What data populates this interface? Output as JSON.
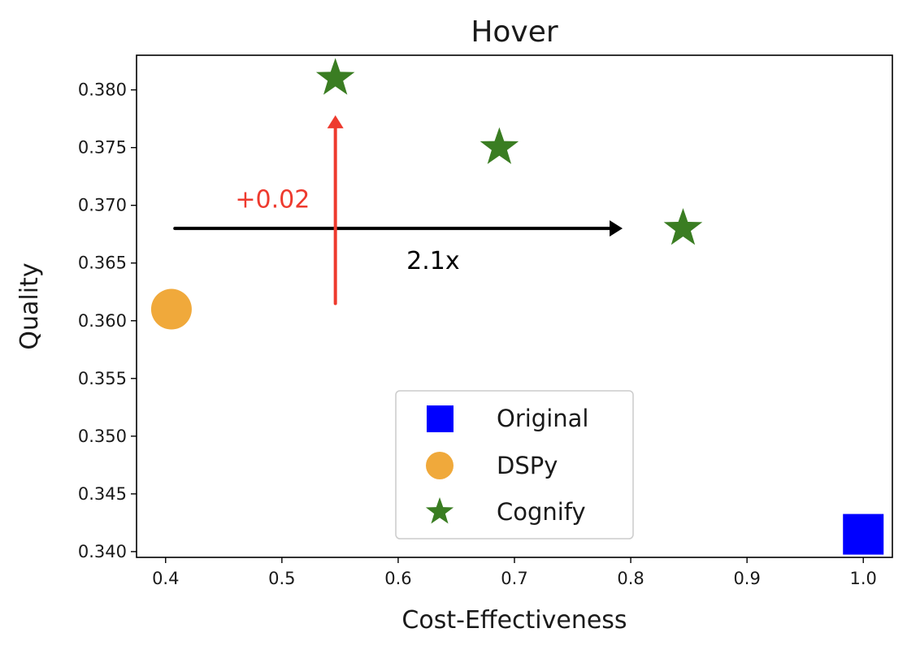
{
  "chart_data": {
    "type": "scatter",
    "title": "Hover",
    "xlabel": "Cost-Effectiveness",
    "ylabel": "Quality",
    "xlim": [
      0.375,
      1.025
    ],
    "ylim": [
      0.3395,
      0.383
    ],
    "xticks": [
      0.4,
      0.5,
      0.6,
      0.7,
      0.8,
      0.9,
      1.0
    ],
    "xtick_labels": [
      "0.4",
      "0.5",
      "0.6",
      "0.7",
      "0.8",
      "0.9",
      "1.0"
    ],
    "yticks": [
      0.34,
      0.345,
      0.35,
      0.355,
      0.36,
      0.365,
      0.37,
      0.375,
      0.38
    ],
    "ytick_labels": [
      "0.340",
      "0.345",
      "0.350",
      "0.355",
      "0.360",
      "0.365",
      "0.370",
      "0.375",
      "0.380"
    ],
    "grid": false,
    "legend_position": "bottom-center",
    "series": [
      {
        "name": "Original",
        "marker": "square",
        "color": "#0000ff",
        "points": [
          {
            "x": 1.0,
            "y": 0.3415
          }
        ]
      },
      {
        "name": "DSPy",
        "marker": "circle",
        "color": "#f0a93b",
        "points": [
          {
            "x": 0.405,
            "y": 0.361
          }
        ]
      },
      {
        "name": "Cognify",
        "marker": "star",
        "color": "#3a7d22",
        "points": [
          {
            "x": 0.546,
            "y": 0.381
          },
          {
            "x": 0.687,
            "y": 0.375
          },
          {
            "x": 0.845,
            "y": 0.368
          }
        ]
      }
    ],
    "annotations": [
      {
        "kind": "arrow",
        "color": "#000000",
        "from": {
          "x": 0.408,
          "y": 0.368
        },
        "to": {
          "x": 0.793,
          "y": 0.368
        },
        "label": "2.1x",
        "label_at": {
          "x": 0.63,
          "y": 0.3652
        }
      },
      {
        "kind": "arrow",
        "color": "#ee3a2e",
        "from": {
          "x": 0.546,
          "y": 0.3615
        },
        "to": {
          "x": 0.546,
          "y": 0.3778
        },
        "label": "+0.02",
        "label_at": {
          "x": 0.492,
          "y": 0.3705
        }
      }
    ]
  }
}
